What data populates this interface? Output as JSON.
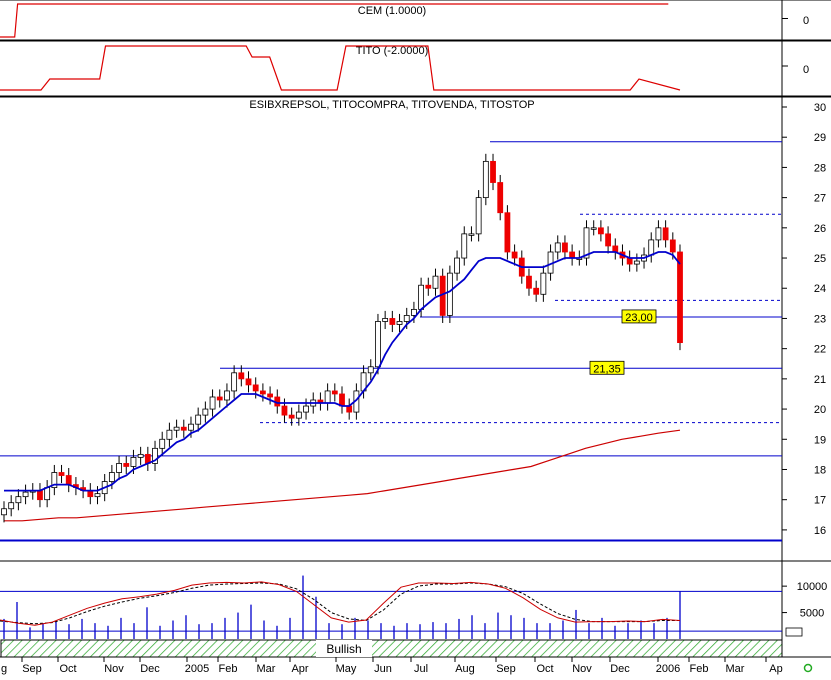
{
  "colors": {
    "indicator_line": "#dd0000",
    "price_line": "#0000cc",
    "candle_up": "#ffffff",
    "candle_down": "#ee0000",
    "sma_fast": "#0000cc",
    "sma_slow": "#cc0000",
    "volume_bar": "#0000cc",
    "badge_fill": "#ffff00",
    "hatch": "#33aa33",
    "grid": "#000000"
  },
  "chart_data": [
    {
      "type": "line",
      "panel": "cem",
      "title": "CEM (1.0000)",
      "y_ticks": [
        "0"
      ],
      "ylim": [
        -1,
        1
      ],
      "x_index": [
        0,
        5,
        6,
        60,
        61,
        135,
        136,
        228
      ],
      "values": [
        -1,
        -1,
        1,
        1,
        1,
        1,
        1,
        1
      ]
    },
    {
      "type": "line",
      "panel": "tito",
      "title": "TITO (-2.0000)",
      "y_ticks": [
        "0"
      ],
      "ylim": [
        -2,
        2
      ],
      "x_index": [
        0,
        14,
        17,
        34,
        36,
        84,
        86,
        92,
        96,
        115,
        118,
        146,
        148,
        215,
        218,
        232
      ],
      "values": [
        -2,
        -2,
        -1,
        -1,
        2,
        2,
        1,
        1,
        -2,
        -2,
        2,
        2,
        -2,
        -2,
        -1,
        -2
      ]
    },
    {
      "type": "candlestick",
      "panel": "price",
      "title": "ESIBXREPSOL, TITOCOMPRA, TITOVENDA, TITOSTOP",
      "ylim": [
        15.5,
        30
      ],
      "y_ticks": [
        "16",
        "17",
        "18",
        "19",
        "20",
        "21",
        "22",
        "23",
        "24",
        "25",
        "26",
        "27",
        "28",
        "29",
        "30"
      ],
      "price_labels": [
        "23,00",
        "21,35"
      ],
      "support_lines_solid": [
        28.85,
        23.05,
        21.35,
        18.45,
        15.65
      ],
      "support_lines_dashed": [
        26.45,
        23.6,
        19.55
      ],
      "candles_close": [
        16.7,
        16.9,
        17.1,
        17.25,
        17.3,
        17.0,
        17.4,
        17.9,
        17.8,
        17.5,
        17.4,
        17.3,
        17.1,
        17.2,
        17.6,
        17.9,
        18.2,
        18.1,
        18.4,
        18.5,
        18.2,
        18.7,
        19.0,
        19.3,
        19.4,
        19.3,
        19.5,
        19.8,
        20.0,
        20.4,
        20.3,
        20.6,
        21.2,
        21.0,
        20.8,
        20.6,
        20.5,
        20.4,
        20.1,
        19.8,
        19.7,
        19.9,
        20.1,
        20.3,
        20.2,
        20.6,
        20.5,
        20.1,
        19.9,
        20.6,
        21.2,
        21.4,
        22.9,
        23.0,
        22.8,
        22.9,
        23.1,
        23.3,
        24.1,
        24.0,
        24.4,
        23.1,
        24.5,
        25.0,
        25.8,
        25.8,
        27.0,
        28.2,
        27.5,
        26.5,
        25.2,
        25.0,
        24.4,
        24.0,
        23.8,
        24.5,
        25.2,
        25.5,
        25.2,
        25.0,
        25.0,
        26.0,
        26.0,
        25.8,
        25.4,
        25.2,
        25.0,
        24.8,
        24.9,
        25.1,
        25.6,
        26.0,
        25.6,
        25.2,
        22.2
      ],
      "sma_fast": [
        17.3,
        17.3,
        17.3,
        17.3,
        17.3,
        17.3,
        17.4,
        17.5,
        17.5,
        17.5,
        17.4,
        17.3,
        17.3,
        17.3,
        17.4,
        17.5,
        17.7,
        17.8,
        18.0,
        18.1,
        18.2,
        18.3,
        18.5,
        18.7,
        18.9,
        19.0,
        19.2,
        19.3,
        19.5,
        19.7,
        19.9,
        20.1,
        20.3,
        20.5,
        20.5,
        20.5,
        20.4,
        20.3,
        20.2,
        20.2,
        20.2,
        20.2,
        20.2,
        20.2,
        20.2,
        20.2,
        20.2,
        20.1,
        20.1,
        20.3,
        20.6,
        20.9,
        21.3,
        21.8,
        22.2,
        22.5,
        22.8,
        23.0,
        23.3,
        23.5,
        23.7,
        23.8,
        23.9,
        24.1,
        24.3,
        24.6,
        24.9,
        25.0,
        25.0,
        25.0,
        24.9,
        24.8,
        24.7,
        24.7,
        24.7,
        24.7,
        24.8,
        24.9,
        25.0,
        25.0,
        25.0,
        25.1,
        25.2,
        25.2,
        25.2,
        25.2,
        25.1,
        25.0,
        25.0,
        25.0,
        25.1,
        25.2,
        25.2,
        25.1,
        24.8
      ],
      "sma_slow": [
        16.3,
        16.3,
        16.35,
        16.4,
        16.4,
        16.45,
        16.5,
        16.55,
        16.6,
        16.65,
        16.7,
        16.75,
        16.8,
        16.85,
        16.9,
        16.95,
        17.0,
        17.05,
        17.1,
        17.15,
        17.2,
        17.3,
        17.4,
        17.5,
        17.6,
        17.7,
        17.8,
        17.9,
        18.0,
        18.1,
        18.3,
        18.5,
        18.7,
        18.85,
        19.0,
        19.1,
        19.2,
        19.3
      ],
      "sma_slow_x_index": [
        0,
        5,
        10,
        15,
        20,
        25,
        30,
        35,
        40,
        45,
        50,
        55,
        60,
        65,
        70,
        75,
        80,
        85,
        90,
        95,
        100,
        105,
        110,
        115,
        120,
        125,
        130,
        135,
        140,
        145,
        150,
        155,
        160,
        165,
        170,
        175,
        180,
        186
      ]
    },
    {
      "type": "bar",
      "panel": "volume",
      "y_ticks": [
        "10000",
        "5000"
      ],
      "ylim": [
        0,
        14000
      ],
      "reference_line": 9000,
      "values": [
        3800,
        7000,
        2200,
        3000,
        3500,
        2800,
        3800,
        3000,
        2500,
        4000,
        3000,
        6000,
        2500,
        3500,
        4500,
        2800,
        3000,
        4000,
        5000,
        6500,
        3500,
        2500,
        4000,
        12000,
        8000,
        3000,
        2800,
        4000,
        3500,
        3000,
        2500,
        3000,
        2800,
        3200,
        3000,
        3800,
        4500,
        3000,
        5000,
        4500,
        4000,
        3000,
        3000,
        3500,
        5500,
        3000,
        4000,
        2500,
        3000,
        3500,
        3000,
        4000,
        9000
      ],
      "osc_line": [
        3600,
        3000,
        2600,
        3200,
        4500,
        5800,
        6800,
        7600,
        8000,
        8500,
        9200,
        10200,
        10600,
        10700,
        10600,
        10800,
        10300,
        9000,
        6500,
        4000,
        3200,
        3600,
        6800,
        9800,
        10600,
        10600,
        10500,
        10700,
        10400,
        9600,
        7800,
        5600,
        4000,
        3200,
        3300,
        3300,
        3400,
        3300,
        3700,
        3500
      ],
      "signal_line": [
        3400,
        3100,
        2900,
        3100,
        4000,
        5200,
        6200,
        7000,
        7700,
        8200,
        8800,
        9600,
        10200,
        10400,
        10500,
        10600,
        10400,
        9500,
        7500,
        5000,
        3800,
        3500,
        5500,
        8500,
        10000,
        10400,
        10400,
        10600,
        10400,
        9900,
        8600,
        6600,
        4800,
        3700,
        3300,
        3300,
        3300,
        3300,
        3500,
        3500
      ]
    }
  ],
  "x_axis": {
    "labels": [
      "g",
      "Sep",
      "Oct",
      "Nov",
      "Dec",
      "2005",
      "Feb",
      "Mar",
      "Apr",
      "May",
      "Jun",
      "Jul",
      "Aug",
      "Sep",
      "Oct",
      "Nov",
      "Dec",
      "2006",
      "Feb",
      "Mar",
      "Ap"
    ]
  },
  "status_bar": {
    "label": "Bullish"
  }
}
